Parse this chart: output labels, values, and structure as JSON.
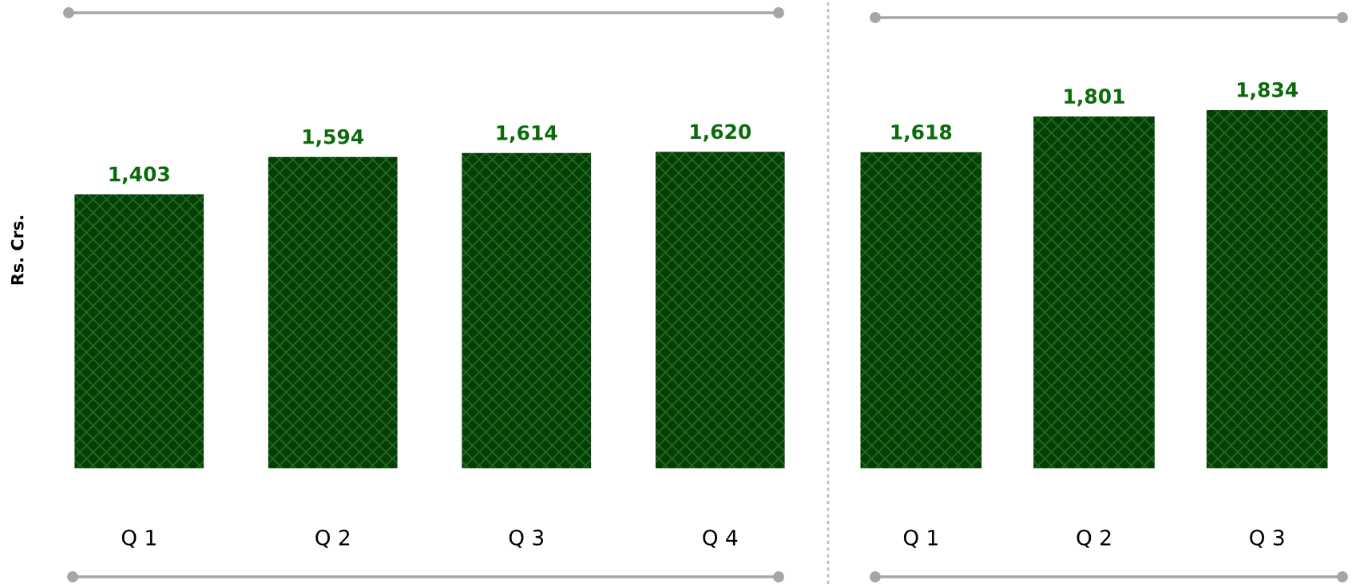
{
  "chart_data": [
    {
      "type": "bar",
      "ylabel": "Rs. Crs.",
      "categories": [
        "Q 1",
        "Q 2",
        "Q 3",
        "Q 4"
      ],
      "color": "#063f06",
      "values": [
        1403,
        1594,
        1614,
        1620
      ],
      "value_labels": [
        "1,403",
        "1,594",
        "1,614",
        "1,620"
      ],
      "tick_labels": "x",
      "grid": false
    },
    {
      "type": "bar",
      "categories": [
        "Q 1",
        "Q 2",
        "Q 3"
      ],
      "color": "#063f06",
      "values": [
        1618,
        1801,
        1834
      ],
      "value_labels": [
        "1,618",
        "1,801",
        "1,834"
      ],
      "tick_labels": "x",
      "grid": false
    }
  ]
}
